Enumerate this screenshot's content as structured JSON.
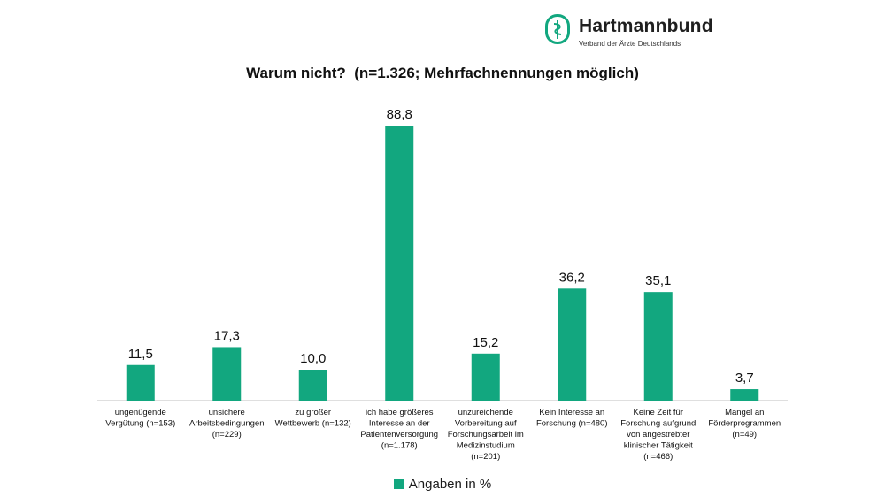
{
  "brand": {
    "name": "Hartmannbund",
    "tagline": "Verband der Ärzte Deutschlands"
  },
  "chart_data": {
    "type": "bar",
    "title": "Warum nicht?  (n=1.326; Mehrfachnennungen möglich)",
    "categories": [
      [
        "ungenügende",
        "Vergütung (n=153)"
      ],
      [
        "unsichere",
        "Arbeitsbedingungen",
        "(n=229)"
      ],
      [
        "zu großer",
        "Wettbewerb (n=132)"
      ],
      [
        "ich habe größeres",
        "Interesse an der",
        "Patientenversorgung",
        "(n=1.178)"
      ],
      [
        "unzureichende",
        "Vorbereitung auf",
        "Forschungsarbeit im",
        "Medizinstudium",
        "(n=201)"
      ],
      [
        "Kein Interesse an",
        "Forschung (n=480)"
      ],
      [
        "Keine Zeit für",
        "Forschung aufgrund",
        "von angestrebter",
        "klinischer Tätigkeit",
        "(n=466)"
      ],
      [
        "Mangel an",
        "Förderprogrammen",
        "(n=49)"
      ]
    ],
    "series": [
      {
        "name": "Angaben in %",
        "values": [
          11.5,
          17.3,
          10.0,
          88.8,
          15.2,
          36.2,
          35.1,
          3.7
        ],
        "labels": [
          "11,5",
          "17,3",
          "10,0",
          "88,8",
          "15,2",
          "36,2",
          "35,1",
          "3,7"
        ]
      }
    ],
    "ylim": [
      0,
      100
    ],
    "grid": false,
    "legend": "bottom",
    "color": "#12a77f"
  }
}
